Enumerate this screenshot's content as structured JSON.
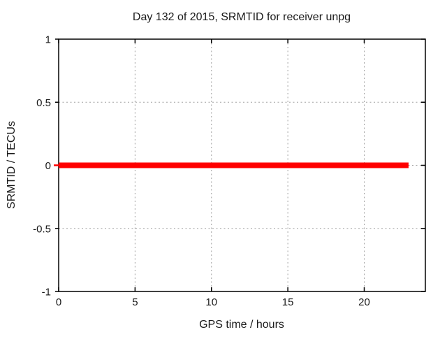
{
  "chart_data": {
    "type": "line",
    "title": "Day 132 of 2015, SRMTID for receiver unpg",
    "xlabel": "GPS time / hours",
    "ylabel": "SRMTID / TECUs",
    "xlim": [
      0,
      24
    ],
    "ylim": [
      -1,
      1
    ],
    "xticks": {
      "values": [
        0,
        5,
        10,
        15,
        20
      ],
      "labels": [
        "0",
        "5",
        "10",
        "15",
        "20"
      ]
    },
    "yticks": {
      "values": [
        1,
        0.5,
        0,
        -0.5,
        -1
      ],
      "labels": [
        "1",
        "0.5",
        "0",
        "-0.5",
        "-1"
      ]
    },
    "grid": true,
    "legend": "none",
    "series": [
      {
        "name": "SRMTID",
        "color": "#ff0000",
        "linewidth": 8,
        "points": [
          [
            0,
            0
          ],
          [
            22.9,
            0
          ]
        ]
      }
    ],
    "colors": {
      "background": "#ffffff",
      "border": "#000000",
      "grid": "#a0a0a0",
      "text": "#1a1a1a"
    }
  }
}
